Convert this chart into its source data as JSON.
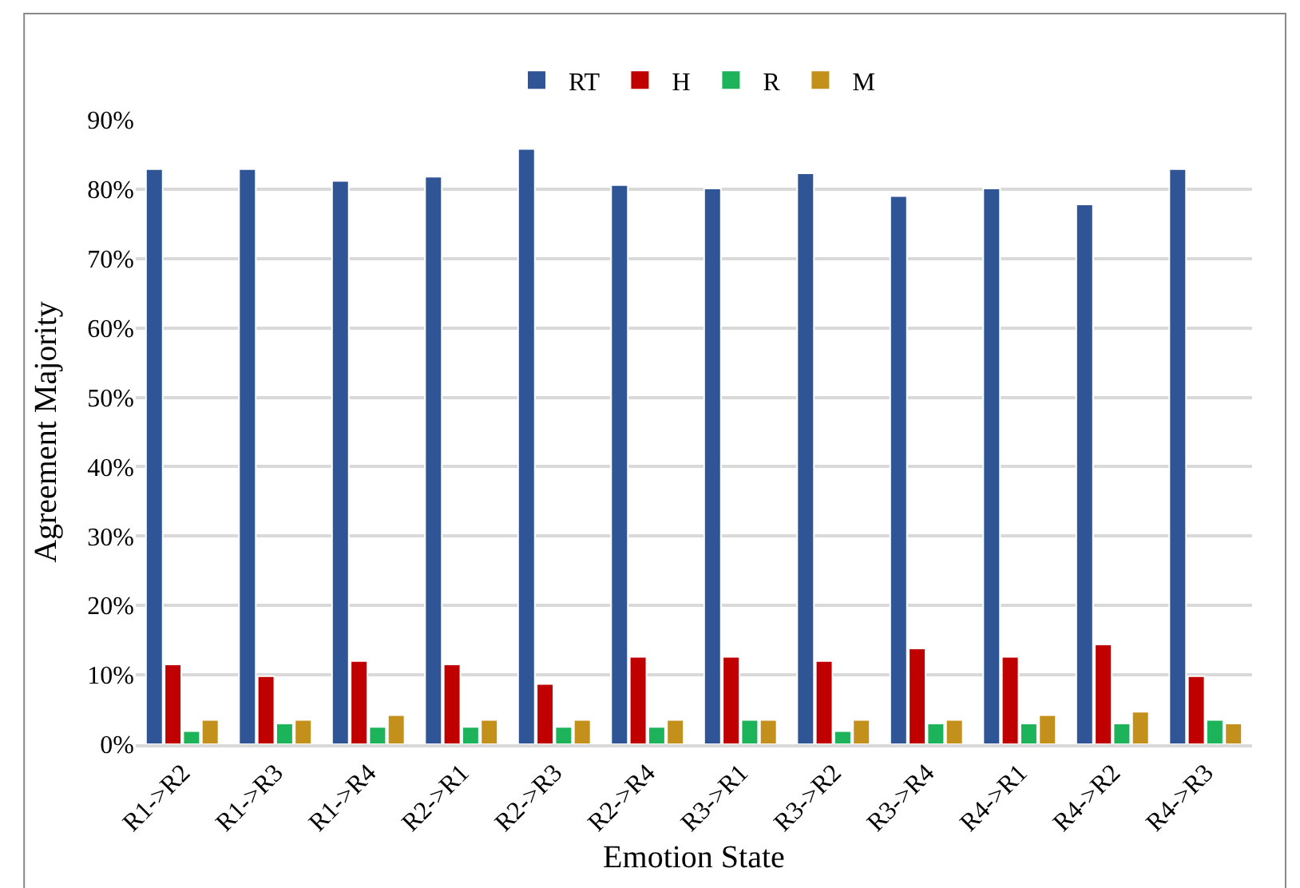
{
  "chart_data": {
    "type": "bar",
    "xlabel": "Emotion State",
    "ylabel": "Agreement Majority",
    "categories": [
      "R1->R2",
      "R1->R3",
      "R1->R4",
      "R2->R1",
      "R2->R3",
      "R2->R4",
      "R3->R1",
      "R3->R2",
      "R3->R4",
      "R4->R1",
      "R4->R2",
      "R4->R3"
    ],
    "series": [
      {
        "name": "RT",
        "color": "#2f5597",
        "values": [
          82.9,
          82.9,
          81.2,
          81.8,
          85.8,
          80.6,
          80.1,
          82.3,
          79.0,
          80.1,
          77.8,
          82.9
        ]
      },
      {
        "name": "H",
        "color": "#c00000",
        "values": [
          11.5,
          9.8,
          12.0,
          11.5,
          8.7,
          12.6,
          12.6,
          12.0,
          13.8,
          12.6,
          14.4,
          9.8
        ]
      },
      {
        "name": "R",
        "color": "#1db35a",
        "values": [
          1.9,
          3.0,
          2.5,
          2.5,
          2.5,
          2.5,
          3.5,
          1.9,
          3.0,
          3.0,
          3.0,
          3.5
        ]
      },
      {
        "name": "M",
        "color": "#c4901c",
        "values": [
          3.5,
          3.5,
          4.2,
          3.5,
          3.5,
          3.5,
          3.5,
          3.5,
          3.5,
          4.2,
          4.7,
          3.0
        ]
      }
    ],
    "ylim": [
      0,
      90
    ],
    "yticks": [
      {
        "value": 0,
        "label": "0%"
      },
      {
        "value": 10,
        "label": "10%"
      },
      {
        "value": 20,
        "label": "20%"
      },
      {
        "value": 30,
        "label": "30%"
      },
      {
        "value": 40,
        "label": "40%"
      },
      {
        "value": 50,
        "label": "50%"
      },
      {
        "value": 60,
        "label": "60%"
      },
      {
        "value": 70,
        "label": "70%"
      },
      {
        "value": 80,
        "label": "80%"
      },
      {
        "value": 90,
        "label": "90%"
      }
    ],
    "grid": "y",
    "legend": "top"
  }
}
